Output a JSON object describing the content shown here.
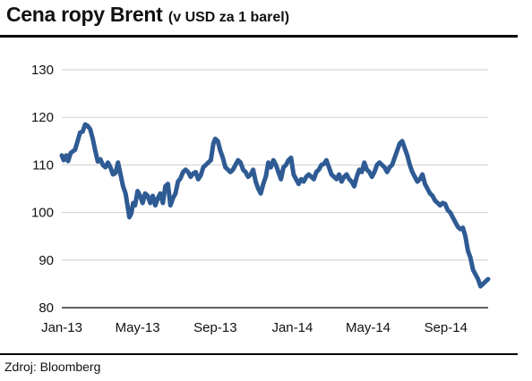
{
  "title": "Cena ropy Brent",
  "subtitle": "(v USD za 1 barel)",
  "source": "Zdroj: Bloomberg",
  "colors": {
    "line": "#2f5b94",
    "grid": "#cfcfcf",
    "axis": "#000000",
    "text": "#111111"
  },
  "chart_data": {
    "type": "line",
    "title": "Cena ropy Brent",
    "subtitle": "(v USD za 1 barel)",
    "xlabel": "",
    "ylabel": "",
    "ylim": [
      80,
      130
    ],
    "yticks": [
      80,
      90,
      100,
      110,
      120,
      130
    ],
    "xlim": [
      "2013-01-01",
      "2014-11-07"
    ],
    "xticks": [
      {
        "label": "Jan-13",
        "date": "2013-01-01"
      },
      {
        "label": "May-13",
        "date": "2013-05-01"
      },
      {
        "label": "Sep-13",
        "date": "2013-09-01"
      },
      {
        "label": "Jan-14",
        "date": "2014-01-01"
      },
      {
        "label": "May-14",
        "date": "2014-05-01"
      },
      {
        "label": "Sep-14",
        "date": "2014-09-01"
      }
    ],
    "grid": true,
    "series": [
      {
        "x": [
          "2013-01-01",
          "2013-01-04",
          "2013-01-08",
          "2013-01-11",
          "2013-01-15",
          "2013-01-18",
          "2013-01-22",
          "2013-01-26",
          "2013-01-30",
          "2013-02-03",
          "2013-02-07",
          "2013-02-11",
          "2013-02-15",
          "2013-02-19",
          "2013-02-23",
          "2013-02-27",
          "2013-03-03",
          "2013-03-07",
          "2013-03-11",
          "2013-03-15",
          "2013-03-19",
          "2013-03-23",
          "2013-03-27",
          "2013-03-31",
          "2013-04-04",
          "2013-04-08",
          "2013-04-12",
          "2013-04-15",
          "2013-04-18",
          "2013-04-21",
          "2013-04-24",
          "2013-04-27",
          "2013-05-01",
          "2013-05-05",
          "2013-05-09",
          "2013-05-13",
          "2013-05-17",
          "2013-05-21",
          "2013-05-25",
          "2013-05-29",
          "2013-06-02",
          "2013-06-06",
          "2013-06-10",
          "2013-06-14",
          "2013-06-18",
          "2013-06-22",
          "2013-06-26",
          "2013-06-30",
          "2013-07-04",
          "2013-07-08",
          "2013-07-12",
          "2013-07-16",
          "2013-07-20",
          "2013-07-24",
          "2013-07-28",
          "2013-08-01",
          "2013-08-05",
          "2013-08-09",
          "2013-08-13",
          "2013-08-17",
          "2013-08-21",
          "2013-08-25",
          "2013-08-29",
          "2013-09-01",
          "2013-09-05",
          "2013-09-09",
          "2013-09-13",
          "2013-09-17",
          "2013-09-21",
          "2013-09-25",
          "2013-09-29",
          "2013-10-03",
          "2013-10-07",
          "2013-10-11",
          "2013-10-15",
          "2013-10-19",
          "2013-10-23",
          "2013-10-27",
          "2013-10-31",
          "2013-11-04",
          "2013-11-08",
          "2013-11-12",
          "2013-11-16",
          "2013-11-20",
          "2013-11-24",
          "2013-11-28",
          "2013-12-02",
          "2013-12-06",
          "2013-12-10",
          "2013-12-14",
          "2013-12-18",
          "2013-12-22",
          "2013-12-26",
          "2013-12-30",
          "2014-01-03",
          "2014-01-07",
          "2014-01-11",
          "2014-01-15",
          "2014-01-19",
          "2014-01-23",
          "2014-01-27",
          "2014-01-31",
          "2014-02-04",
          "2014-02-08",
          "2014-02-12",
          "2014-02-16",
          "2014-02-20",
          "2014-02-24",
          "2014-02-28",
          "2014-03-04",
          "2014-03-08",
          "2014-03-12",
          "2014-03-16",
          "2014-03-20",
          "2014-03-24",
          "2014-03-28",
          "2014-04-01",
          "2014-04-05",
          "2014-04-09",
          "2014-04-13",
          "2014-04-17",
          "2014-04-21",
          "2014-04-25",
          "2014-04-29",
          "2014-05-03",
          "2014-05-07",
          "2014-05-11",
          "2014-05-15",
          "2014-05-19",
          "2014-05-23",
          "2014-05-27",
          "2014-05-31",
          "2014-06-04",
          "2014-06-08",
          "2014-06-12",
          "2014-06-16",
          "2014-06-20",
          "2014-06-24",
          "2014-06-28",
          "2014-07-02",
          "2014-07-06",
          "2014-07-10",
          "2014-07-14",
          "2014-07-18",
          "2014-07-22",
          "2014-07-26",
          "2014-07-30",
          "2014-08-03",
          "2014-08-07",
          "2014-08-11",
          "2014-08-15",
          "2014-08-19",
          "2014-08-23",
          "2014-08-27",
          "2014-08-31",
          "2014-09-04",
          "2014-09-08",
          "2014-09-12",
          "2014-09-16",
          "2014-09-20",
          "2014-09-24",
          "2014-09-28",
          "2014-10-02",
          "2014-10-06",
          "2014-10-10",
          "2014-10-14",
          "2014-10-18",
          "2014-10-22",
          "2014-10-26",
          "2014-10-30",
          "2014-11-03",
          "2014-11-07"
        ],
        "values": [
          112.0,
          111.0,
          112.0,
          110.8,
          112.5,
          112.8,
          113.2,
          115.0,
          116.8,
          117.0,
          118.5,
          118.2,
          117.5,
          115.5,
          113.0,
          110.7,
          111.2,
          110.0,
          109.5,
          110.5,
          109.5,
          108.0,
          108.3,
          110.5,
          108.0,
          105.5,
          104.0,
          101.5,
          99.0,
          99.8,
          102.0,
          101.5,
          104.5,
          103.5,
          102.0,
          104.0,
          103.5,
          102.0,
          103.5,
          101.5,
          103.0,
          104.0,
          102.0,
          105.5,
          106.0,
          101.5,
          103.0,
          104.0,
          106.5,
          107.2,
          108.5,
          109.0,
          108.5,
          107.5,
          108.2,
          108.5,
          107.0,
          107.8,
          109.5,
          110.0,
          110.5,
          111.0,
          114.5,
          115.5,
          115.0,
          113.0,
          111.5,
          109.5,
          109.0,
          108.5,
          109.0,
          110.0,
          111.0,
          110.5,
          109.0,
          108.5,
          107.5,
          108.0,
          109.0,
          106.5,
          105.0,
          104.0,
          106.0,
          107.5,
          110.5,
          109.5,
          111.0,
          110.0,
          108.5,
          107.0,
          109.5,
          110.0,
          111.0,
          111.5,
          108.0,
          107.0,
          106.0,
          107.0,
          106.5,
          107.5,
          108.0,
          107.5,
          107.0,
          108.5,
          109.0,
          110.0,
          110.2,
          111.0,
          109.5,
          108.0,
          107.5,
          107.0,
          108.0,
          106.5,
          107.5,
          108.0,
          107.0,
          106.5,
          105.5,
          107.5,
          109.0,
          108.5,
          110.5,
          109.0,
          108.5,
          107.5,
          108.5,
          110.0,
          110.5,
          110.0,
          109.5,
          108.5,
          109.5,
          110.0,
          111.5,
          113.0,
          114.5,
          115.0,
          113.5,
          112.0,
          110.0,
          108.5,
          107.5,
          106.5,
          107.0,
          108.0,
          106.0,
          105.0,
          104.0,
          103.5,
          102.5,
          102.0,
          101.5,
          102.0,
          101.8,
          100.5,
          100.0,
          99.0,
          98.0,
          97.0,
          96.5,
          96.8,
          95.0,
          92.0,
          90.5,
          88.0,
          87.0,
          86.0,
          84.5,
          85.0,
          85.5,
          86.0
        ]
      }
    ]
  }
}
